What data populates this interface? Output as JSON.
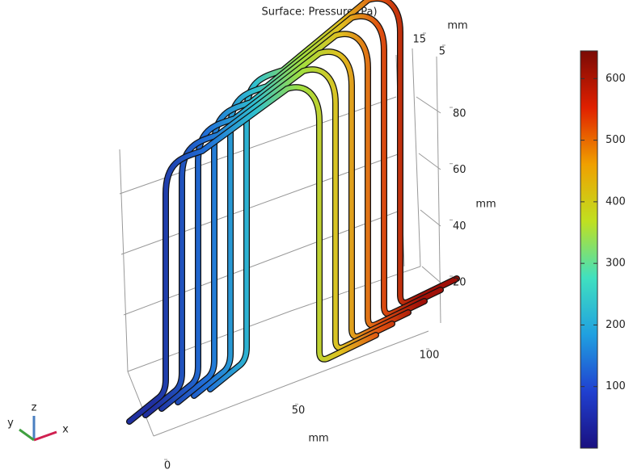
{
  "chart_data": {
    "type": "surface3d",
    "title": "Surface: Pressure (Pa)",
    "colorbar": {
      "lim": [
        0,
        645
      ],
      "ticks": [
        100,
        200,
        300,
        400,
        500,
        600
      ],
      "colors": [
        "#1a1080",
        "#2040d0",
        "#20a0e0",
        "#40e0c0",
        "#c0e020",
        "#f0a000",
        "#e02000",
        "#7a0a05"
      ]
    },
    "x_axis": {
      "label": "mm",
      "ticks": [
        0,
        50,
        100
      ]
    },
    "y_axis": {
      "label": "mm",
      "ticks": [
        5,
        15
      ]
    },
    "z_axis": {
      "label": "mm",
      "ticks": [
        20,
        40,
        60,
        80
      ]
    },
    "triad": [
      "x",
      "y",
      "z"
    ]
  }
}
